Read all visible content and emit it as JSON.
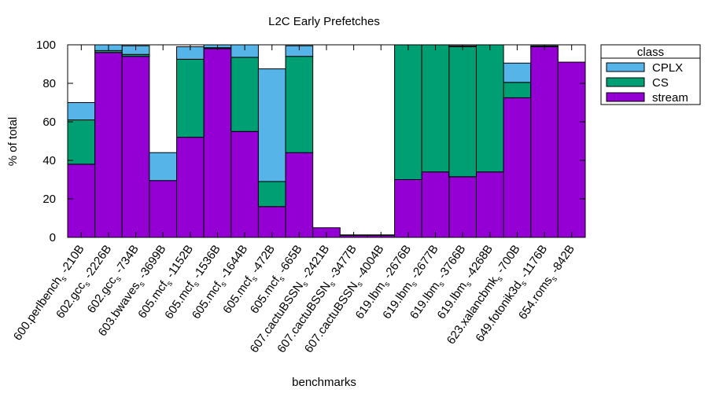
{
  "chart_data": {
    "type": "bar",
    "stacked": true,
    "title": "L2C Early Prefetches",
    "xlabel": "benchmarks",
    "ylabel": "% of total",
    "ylim": [
      0,
      100
    ],
    "yticks": [
      0,
      20,
      40,
      60,
      80,
      100
    ],
    "legend": {
      "title": "class",
      "placement": "outside-top-right",
      "entries": [
        "CPLX",
        "CS",
        "stream"
      ]
    },
    "categories": [
      {
        "prefix": "600.perlbench",
        "sub": "s",
        "suffix": " -210B"
      },
      {
        "prefix": "602.gcc",
        "sub": "s",
        "suffix": " -2226B"
      },
      {
        "prefix": "602.gcc",
        "sub": "s",
        "suffix": " -734B"
      },
      {
        "prefix": "603.bwaves",
        "sub": "s",
        "suffix": " -3699B"
      },
      {
        "prefix": "605.mcf",
        "sub": "s",
        "suffix": " -1152B"
      },
      {
        "prefix": "605.mcf",
        "sub": "s",
        "suffix": " -1536B"
      },
      {
        "prefix": "605.mcf",
        "sub": "s",
        "suffix": " -1644B"
      },
      {
        "prefix": "605.mcf",
        "sub": "s",
        "suffix": " -472B"
      },
      {
        "prefix": "605.mcf",
        "sub": "s",
        "suffix": " -665B"
      },
      {
        "prefix": "607.cactuBSSN",
        "sub": "s",
        "suffix": " -2421B"
      },
      {
        "prefix": "607.cactuBSSN",
        "sub": "s",
        "suffix": " -3477B"
      },
      {
        "prefix": "607.cactuBSSN",
        "sub": "s",
        "suffix": " -4004B"
      },
      {
        "prefix": "619.lbm",
        "sub": "s",
        "suffix": " -2676B"
      },
      {
        "prefix": "619.lbm",
        "sub": "s",
        "suffix": " -2677B"
      },
      {
        "prefix": "619.lbm",
        "sub": "s",
        "suffix": " -3766B"
      },
      {
        "prefix": "619.lbm",
        "sub": "s",
        "suffix": " -4268B"
      },
      {
        "prefix": "623.xalancbmk",
        "sub": "s",
        "suffix": " -700B"
      },
      {
        "prefix": "649.fotonik3d",
        "sub": "s",
        "suffix": " -1176B"
      },
      {
        "prefix": "654.roms",
        "sub": "s",
        "suffix": " -842B"
      }
    ],
    "series": [
      {
        "name": "stream",
        "color": "#9400d3",
        "values": [
          38,
          96,
          94,
          29.5,
          52,
          98,
          55,
          16,
          44,
          5,
          1,
          1,
          30,
          34,
          31.5,
          34,
          72.5,
          99,
          91
        ]
      },
      {
        "name": "CS",
        "color": "#009e73",
        "values": [
          23,
          1,
          1,
          0,
          40.5,
          0.5,
          38.5,
          13,
          50,
          0,
          0.3,
          0.3,
          70,
          66,
          67.5,
          66,
          8,
          0.5,
          0
        ]
      },
      {
        "name": "CPLX",
        "color": "#56b4e9",
        "values": [
          9,
          3,
          4.5,
          14.5,
          6.5,
          1.5,
          6.5,
          58.5,
          5.5,
          0,
          0,
          0,
          0,
          0,
          0.5,
          0,
          10,
          0,
          0
        ]
      }
    ]
  }
}
